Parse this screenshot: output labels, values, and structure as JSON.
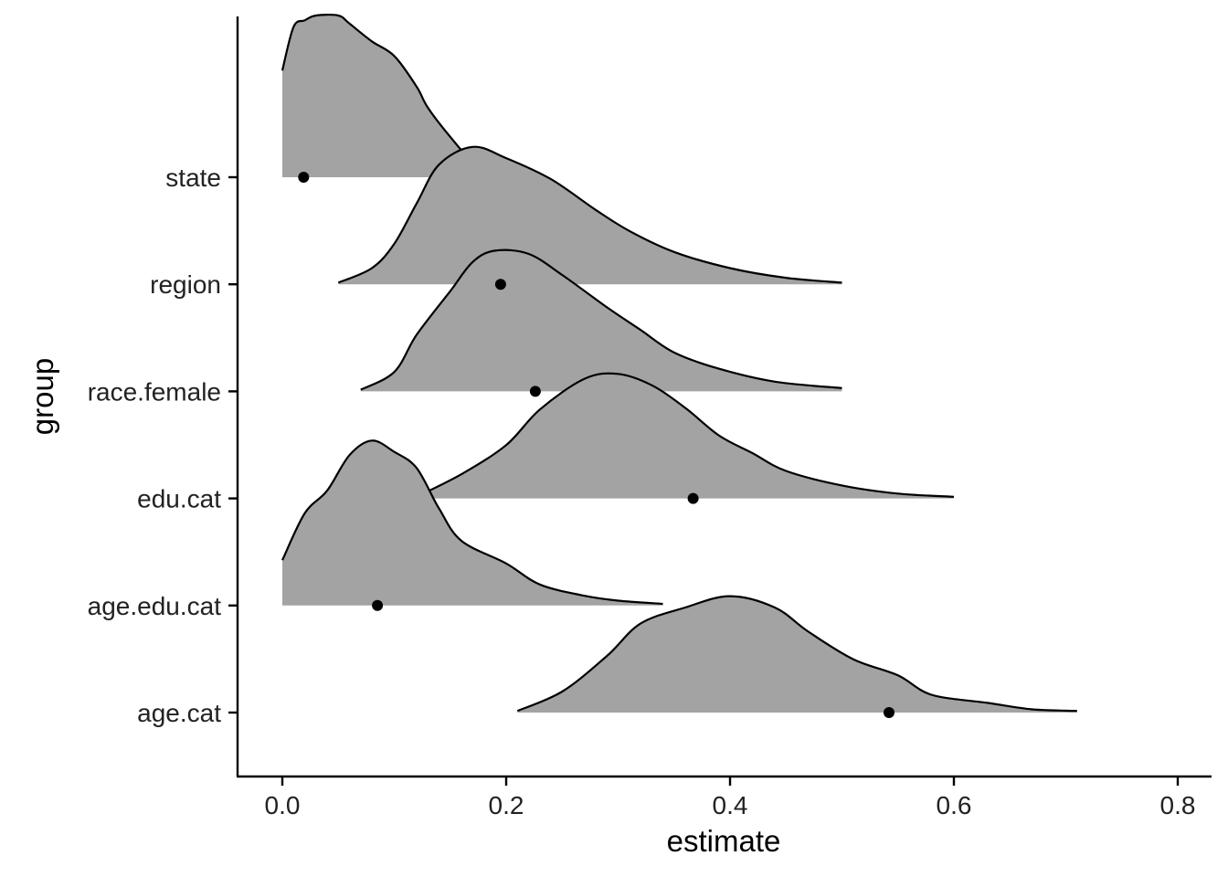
{
  "chart_data": {
    "type": "ridgeline",
    "xlabel": "estimate",
    "ylabel": "group",
    "xlim": [
      -0.04,
      0.83
    ],
    "x_ticks": [
      0.0,
      0.2,
      0.4,
      0.6,
      0.8
    ],
    "x_tick_labels": [
      "0.0",
      "0.2",
      "0.4",
      "0.6",
      "0.8"
    ],
    "grid": false,
    "fill_color": "#a3a3a3",
    "outline_color": "#000000",
    "point_color": "#000000",
    "groups": [
      {
        "label": "state",
        "point": 0.019,
        "density": [
          [
            0.0,
            0.66
          ],
          [
            0.01,
            0.93
          ],
          [
            0.02,
            0.97
          ],
          [
            0.03,
            1.0
          ],
          [
            0.05,
            1.0
          ],
          [
            0.06,
            0.95
          ],
          [
            0.08,
            0.84
          ],
          [
            0.1,
            0.75
          ],
          [
            0.12,
            0.56
          ],
          [
            0.13,
            0.43
          ],
          [
            0.15,
            0.25
          ],
          [
            0.17,
            0.1
          ],
          [
            0.19,
            0.05
          ],
          [
            0.21,
            0.03
          ]
        ]
      },
      {
        "label": "region",
        "point": 0.195,
        "density": [
          [
            0.05,
            0.01
          ],
          [
            0.08,
            0.1
          ],
          [
            0.1,
            0.25
          ],
          [
            0.12,
            0.5
          ],
          [
            0.14,
            0.74
          ],
          [
            0.17,
            0.85
          ],
          [
            0.2,
            0.78
          ],
          [
            0.24,
            0.65
          ],
          [
            0.28,
            0.46
          ],
          [
            0.31,
            0.33
          ],
          [
            0.35,
            0.2
          ],
          [
            0.4,
            0.1
          ],
          [
            0.45,
            0.04
          ],
          [
            0.5,
            0.01
          ]
        ]
      },
      {
        "label": "race.female",
        "point": 0.226,
        "density": [
          [
            0.07,
            0.01
          ],
          [
            0.1,
            0.12
          ],
          [
            0.12,
            0.35
          ],
          [
            0.15,
            0.62
          ],
          [
            0.17,
            0.8
          ],
          [
            0.19,
            0.87
          ],
          [
            0.22,
            0.85
          ],
          [
            0.25,
            0.72
          ],
          [
            0.29,
            0.52
          ],
          [
            0.32,
            0.38
          ],
          [
            0.35,
            0.24
          ],
          [
            0.39,
            0.14
          ],
          [
            0.44,
            0.06
          ],
          [
            0.5,
            0.02
          ]
        ]
      },
      {
        "label": "edu.cat",
        "point": 0.367,
        "density": [
          [
            0.12,
            0.01
          ],
          [
            0.16,
            0.15
          ],
          [
            0.2,
            0.33
          ],
          [
            0.23,
            0.55
          ],
          [
            0.27,
            0.74
          ],
          [
            0.3,
            0.77
          ],
          [
            0.33,
            0.7
          ],
          [
            0.36,
            0.56
          ],
          [
            0.39,
            0.39
          ],
          [
            0.42,
            0.28
          ],
          [
            0.45,
            0.17
          ],
          [
            0.5,
            0.08
          ],
          [
            0.55,
            0.03
          ],
          [
            0.6,
            0.01
          ]
        ]
      },
      {
        "label": "age.edu.cat",
        "point": 0.085,
        "density": [
          [
            0.0,
            0.28
          ],
          [
            0.02,
            0.57
          ],
          [
            0.04,
            0.71
          ],
          [
            0.06,
            0.93
          ],
          [
            0.08,
            1.02
          ],
          [
            0.1,
            0.95
          ],
          [
            0.12,
            0.85
          ],
          [
            0.14,
            0.6
          ],
          [
            0.16,
            0.4
          ],
          [
            0.2,
            0.26
          ],
          [
            0.23,
            0.13
          ],
          [
            0.27,
            0.06
          ],
          [
            0.3,
            0.03
          ],
          [
            0.34,
            0.01
          ]
        ]
      },
      {
        "label": "age.cat",
        "point": 0.542,
        "density": [
          [
            0.21,
            0.01
          ],
          [
            0.25,
            0.13
          ],
          [
            0.29,
            0.35
          ],
          [
            0.32,
            0.55
          ],
          [
            0.36,
            0.65
          ],
          [
            0.4,
            0.72
          ],
          [
            0.44,
            0.65
          ],
          [
            0.47,
            0.5
          ],
          [
            0.51,
            0.33
          ],
          [
            0.55,
            0.23
          ],
          [
            0.58,
            0.11
          ],
          [
            0.63,
            0.06
          ],
          [
            0.67,
            0.02
          ],
          [
            0.71,
            0.01
          ]
        ]
      }
    ]
  }
}
